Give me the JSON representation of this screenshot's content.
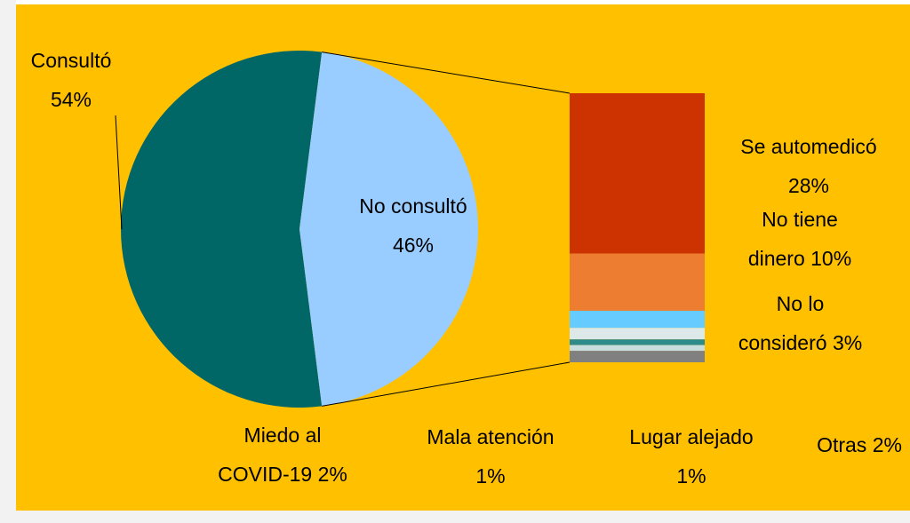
{
  "chart_data": {
    "type": "pie-of-bar",
    "categories": [
      "Consultó",
      "No consultó"
    ],
    "values": [
      54,
      46
    ],
    "value_labels": [
      "54%",
      "46%"
    ],
    "colors": [
      "#006666",
      "#99ccff"
    ],
    "breakdown": {
      "categories": [
        "Se automedicó",
        "No tiene dinero",
        "No lo consideró",
        "Miedo al COVID-19",
        "Mala atención",
        "Lugar alejado",
        "Otras"
      ],
      "values": [
        28,
        10,
        3,
        2,
        1,
        1,
        2
      ],
      "value_labels": [
        "28%",
        "10%",
        "3%",
        "2%",
        "1%",
        "1%",
        "2%"
      ],
      "colors": [
        "#cc3300",
        "#ed7d31",
        "#66ccff",
        "#dde8e8",
        "#2e8b8b",
        "#c8dede",
        "#808080"
      ]
    }
  }
}
